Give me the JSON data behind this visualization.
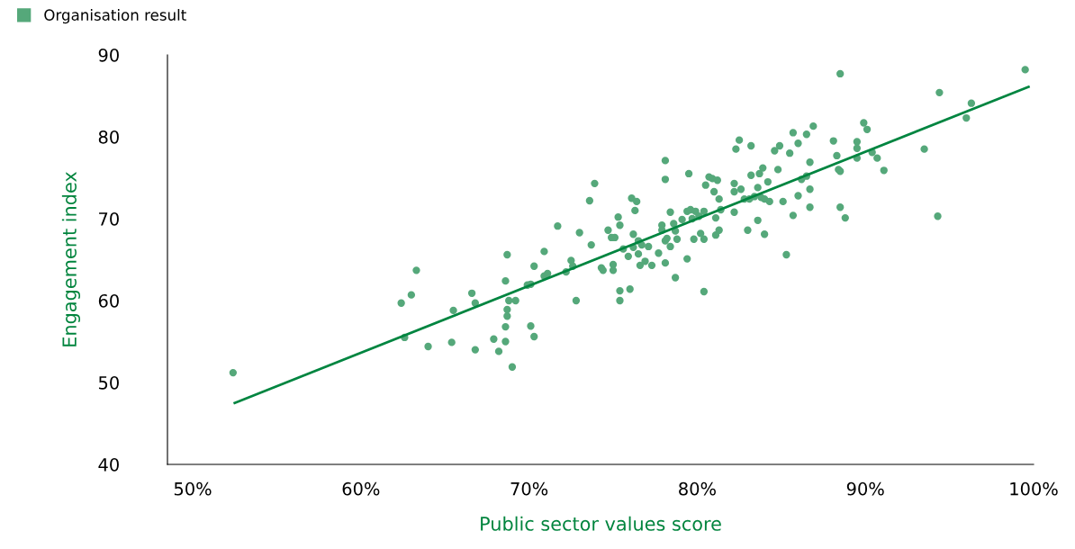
{
  "chart_data": {
    "type": "scatter",
    "xlabel": "Public sector values score",
    "ylabel": "Engagement index",
    "xlim": [
      48.5,
      100
    ],
    "ylim": [
      40,
      90
    ],
    "xticks": [
      {
        "value": 50,
        "label": "50%"
      },
      {
        "value": 60,
        "label": "60%"
      },
      {
        "value": 70,
        "label": "70%"
      },
      {
        "value": 80,
        "label": "80%"
      },
      {
        "value": 90,
        "label": "90%"
      },
      {
        "value": 100,
        "label": "100%"
      }
    ],
    "yticks": [
      40,
      50,
      60,
      70,
      80,
      90
    ],
    "grid": false,
    "legend": "top left",
    "series": [
      {
        "name": "Organisation result",
        "marker": "circle",
        "color": "#55a87a",
        "x": [
          52.4,
          62.4,
          63.0,
          63.3,
          62.6,
          64.0,
          65.5,
          65.4,
          66.6,
          66.8,
          66.8,
          67.9,
          68.2,
          68.6,
          68.7,
          68.7,
          68.7,
          68.6,
          68.6,
          69.0,
          68.8,
          69.2,
          70.1,
          70.3,
          69.9,
          70.1,
          70.3,
          70.9,
          70.9,
          71.1,
          71.7,
          72.2,
          72.5,
          72.6,
          72.8,
          73.0,
          73.6,
          73.7,
          73.9,
          74.3,
          74.4,
          74.7,
          74.9,
          75.0,
          75.0,
          75.1,
          75.3,
          75.4,
          75.4,
          75.4,
          75.6,
          75.9,
          76.0,
          76.2,
          76.2,
          76.1,
          76.4,
          76.3,
          76.5,
          76.5,
          76.7,
          76.6,
          76.9,
          77.1,
          77.3,
          77.7,
          77.9,
          78.1,
          78.1,
          78.1,
          77.9,
          78.1,
          78.2,
          78.4,
          78.4,
          78.6,
          78.7,
          78.8,
          78.7,
          79.1,
          79.4,
          79.4,
          79.5,
          79.6,
          79.8,
          79.7,
          79.9,
          80.1,
          80.2,
          80.4,
          80.4,
          80.5,
          80.7,
          80.4,
          80.9,
          81.0,
          81.1,
          81.1,
          81.2,
          81.3,
          81.3,
          81.4,
          82.2,
          82.2,
          82.2,
          82.3,
          82.5,
          82.6,
          82.8,
          83.0,
          83.1,
          83.2,
          83.2,
          83.4,
          83.6,
          83.6,
          83.7,
          83.8,
          83.9,
          84.0,
          84.0,
          84.2,
          84.3,
          84.6,
          84.8,
          84.9,
          85.1,
          85.3,
          85.5,
          85.7,
          85.7,
          86.0,
          86.0,
          86.2,
          86.5,
          86.5,
          86.7,
          86.7,
          86.9,
          86.7,
          88.1,
          88.3,
          88.5,
          88.4,
          88.5,
          88.5,
          88.8,
          89.5,
          89.5,
          89.5,
          89.9,
          90.1,
          90.4,
          90.7,
          91.1,
          93.5,
          94.3,
          94.4,
          96.0,
          96.3,
          99.5
        ],
        "values": [
          51.2,
          59.7,
          60.7,
          63.7,
          55.5,
          54.4,
          58.8,
          54.9,
          60.9,
          59.7,
          54.0,
          55.3,
          53.8,
          62.4,
          65.6,
          58.9,
          58.1,
          56.8,
          55.0,
          51.9,
          60.0,
          60.0,
          56.9,
          55.6,
          61.9,
          62.0,
          64.2,
          66.0,
          63.0,
          63.3,
          69.1,
          63.5,
          64.9,
          64.2,
          60.0,
          68.3,
          72.2,
          66.8,
          74.3,
          64.0,
          63.7,
          68.6,
          67.7,
          64.4,
          63.7,
          67.7,
          70.2,
          69.2,
          61.2,
          60.0,
          66.3,
          65.4,
          61.4,
          66.5,
          68.1,
          72.5,
          72.1,
          71.0,
          67.3,
          65.7,
          66.8,
          64.3,
          64.8,
          66.6,
          64.3,
          65.8,
          68.6,
          77.1,
          74.8,
          64.6,
          69.2,
          67.3,
          67.6,
          70.8,
          66.6,
          69.4,
          68.5,
          67.5,
          62.8,
          69.9,
          70.9,
          65.1,
          75.5,
          71.1,
          67.5,
          70.0,
          70.9,
          70.3,
          68.2,
          67.5,
          70.9,
          74.1,
          75.1,
          61.1,
          74.9,
          73.3,
          70.1,
          68.0,
          74.7,
          72.4,
          68.6,
          71.1,
          73.3,
          70.8,
          74.3,
          78.5,
          79.6,
          73.6,
          72.4,
          68.6,
          72.4,
          75.3,
          78.9,
          72.7,
          73.8,
          69.8,
          75.5,
          72.6,
          76.2,
          72.4,
          68.1,
          74.5,
          72.1,
          78.3,
          76.0,
          78.9,
          72.1,
          65.6,
          78.0,
          80.5,
          70.4,
          72.8,
          79.2,
          74.8,
          80.3,
          75.2,
          76.9,
          71.4,
          81.3,
          73.6,
          79.5,
          77.7,
          87.7,
          76.0,
          75.8,
          71.4,
          70.1,
          79.4,
          78.6,
          77.4,
          81.7,
          80.9,
          78.1,
          77.4,
          75.9,
          78.5,
          70.3,
          85.4,
          82.3,
          84.1,
          88.2
        ]
      },
      {
        "type": "line",
        "marker": "none",
        "color": "#008540",
        "x": [
          52.5,
          99.7
        ],
        "values": [
          47.5,
          86.1
        ]
      }
    ]
  }
}
